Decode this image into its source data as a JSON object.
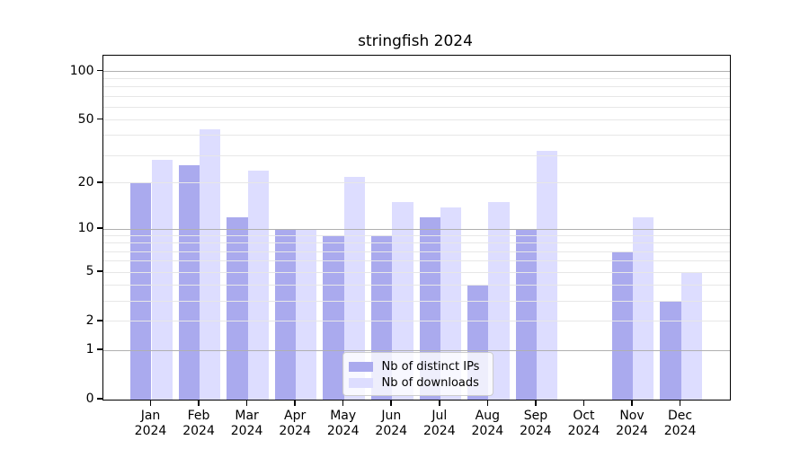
{
  "figure": {
    "background": "#ffffff",
    "spine_color": "#000000",
    "minor_grid_color": "#e7e7e7",
    "major_grid_color": "#b0b0b0"
  },
  "chart_data": {
    "type": "bar",
    "title": "stringfish 2024",
    "categories": [
      "Jan",
      "Feb",
      "Mar",
      "Apr",
      "May",
      "Jun",
      "Jul",
      "Aug",
      "Sep",
      "Oct",
      "Nov",
      "Dec"
    ],
    "category_year": "2024",
    "series": [
      {
        "name": "Nb of distinct IPs",
        "color": "#aaaaee",
        "values": [
          20,
          26,
          12,
          10,
          9,
          9,
          12,
          4,
          10,
          0,
          7,
          3
        ]
      },
      {
        "name": "Nb of downloads",
        "color": "#ddddff",
        "values": [
          28,
          44,
          24,
          10,
          22,
          15,
          14,
          15,
          32,
          0,
          12,
          5
        ]
      }
    ],
    "xlabel": "",
    "ylabel": "",
    "yscale": "log1p",
    "ylim": [
      0,
      125
    ],
    "yticks": [
      0,
      1,
      2,
      5,
      10,
      20,
      50,
      100
    ],
    "major_gridlines": [
      1,
      10,
      100
    ],
    "minor_gridlines": [
      2,
      3,
      4,
      5,
      6,
      7,
      8,
      9,
      20,
      30,
      40,
      50,
      60,
      70,
      80,
      90
    ],
    "grid": "on",
    "grid_above_bars": true,
    "legend_position": "lower-center"
  }
}
